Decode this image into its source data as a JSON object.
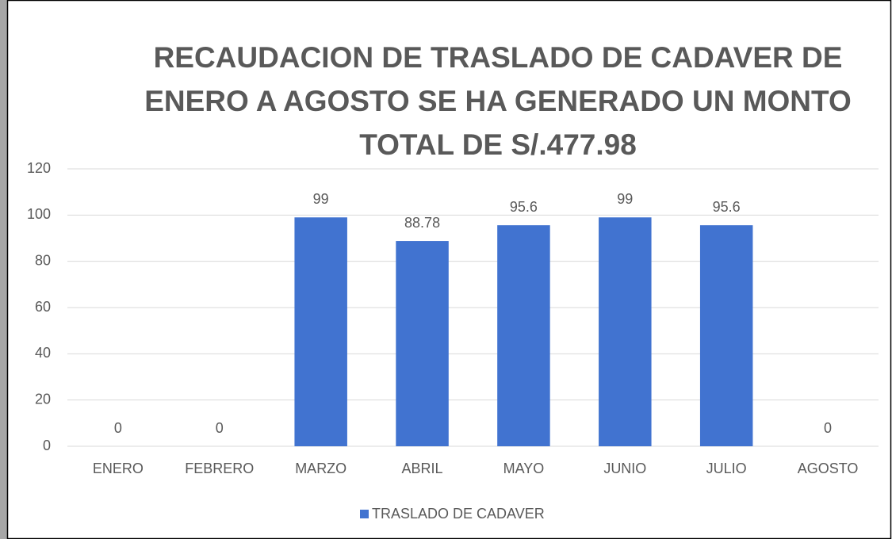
{
  "chart_data": {
    "type": "bar",
    "title": [
      "RECAUDACION DE TRASLADO DE CADAVER DE",
      "ENERO A AGOSTO SE HA GENERADO UN MONTO",
      "TOTAL DE S/.477.98"
    ],
    "categories": [
      "ENERO",
      "FEBRERO",
      "MARZO",
      "ABRIL",
      "MAYO",
      "JUNIO",
      "JULIO",
      "AGOSTO"
    ],
    "series": [
      {
        "name": "TRASLADO DE CADAVER",
        "color": "#4173d0",
        "values": [
          0,
          0,
          99,
          88.78,
          95.6,
          99,
          95.6,
          0
        ]
      }
    ],
    "ylim": [
      0,
      120
    ],
    "yticks": [
      0,
      20,
      40,
      60,
      80,
      100,
      120
    ],
    "grid": true,
    "legend": "bottom"
  }
}
